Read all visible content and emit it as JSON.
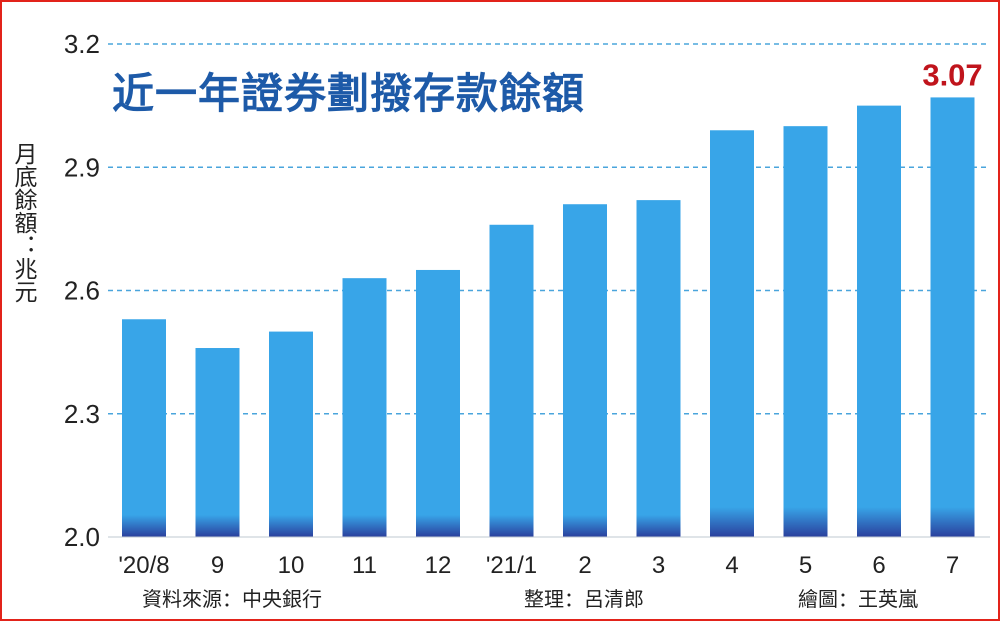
{
  "chart_data": {
    "type": "bar",
    "title": "近一年證券劃撥存款餘額",
    "ylabel": "月底餘額：兆元",
    "categories": [
      "'20/8",
      "9",
      "10",
      "11",
      "12",
      "'21/1",
      "2",
      "3",
      "4",
      "5",
      "6",
      "7"
    ],
    "values": [
      2.53,
      2.46,
      2.5,
      2.63,
      2.65,
      2.76,
      2.81,
      2.82,
      2.99,
      3.0,
      3.05,
      3.07
    ],
    "ylim": [
      2.0,
      3.2
    ],
    "yticks": [
      "2.0",
      "2.3",
      "2.6",
      "2.9",
      "3.2"
    ],
    "grid": true,
    "highlight_label": "3.07",
    "colors": {
      "bar": "#38a5e8",
      "bar_base": "#2a3f9c",
      "grid": "#4aa5dc",
      "title": "#1d5aa8",
      "highlight": "#c0141c",
      "frame": "#e2231a"
    }
  },
  "footer": {
    "source": "資料來源：中央銀行",
    "editor": "整理：呂清郎",
    "illustrator": "繪圖：王英嵐"
  }
}
